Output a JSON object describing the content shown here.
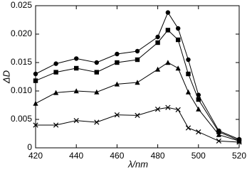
{
  "chart_data": {
    "type": "line",
    "x_label": "λ/nm",
    "y_label": "ΔD",
    "x": [
      420,
      430,
      440,
      450,
      460,
      470,
      480,
      485,
      490,
      495,
      500,
      510,
      520
    ],
    "series": [
      {
        "marker": "circle",
        "color": "#000000",
        "values": [
          0.013,
          0.0148,
          0.0157,
          0.015,
          0.0165,
          0.017,
          0.0195,
          0.0238,
          0.021,
          0.0155,
          0.0093,
          0.003,
          0.0015
        ]
      },
      {
        "marker": "square",
        "color": "#000000",
        "values": [
          0.0118,
          0.0133,
          0.014,
          0.0133,
          0.015,
          0.0155,
          0.0185,
          0.0207,
          0.019,
          0.013,
          0.0085,
          0.0028,
          0.0013
        ]
      },
      {
        "marker": "triangle",
        "color": "#000000",
        "values": [
          0.0078,
          0.0097,
          0.01,
          0.0098,
          0.0112,
          0.0115,
          0.0138,
          0.015,
          0.014,
          0.0098,
          0.0068,
          0.0023,
          0.0012
        ]
      },
      {
        "marker": "cross",
        "color": "#000000",
        "values": [
          0.004,
          0.004,
          0.0048,
          0.0045,
          0.0058,
          0.0057,
          0.0068,
          0.0071,
          0.0067,
          0.0035,
          0.0028,
          0.0012,
          0.001
        ]
      }
    ],
    "xlim": [
      420,
      520
    ],
    "xticks": [
      420,
      440,
      460,
      480,
      500,
      520
    ],
    "ylim": [
      0,
      0.025
    ],
    "yticks": [
      0,
      0.005,
      {
        "value": 0.01,
        "label": "0.010"
      },
      0.015,
      {
        "value": 0.02,
        "label": "0.020"
      },
      0.025
    ],
    "grid": false
  }
}
